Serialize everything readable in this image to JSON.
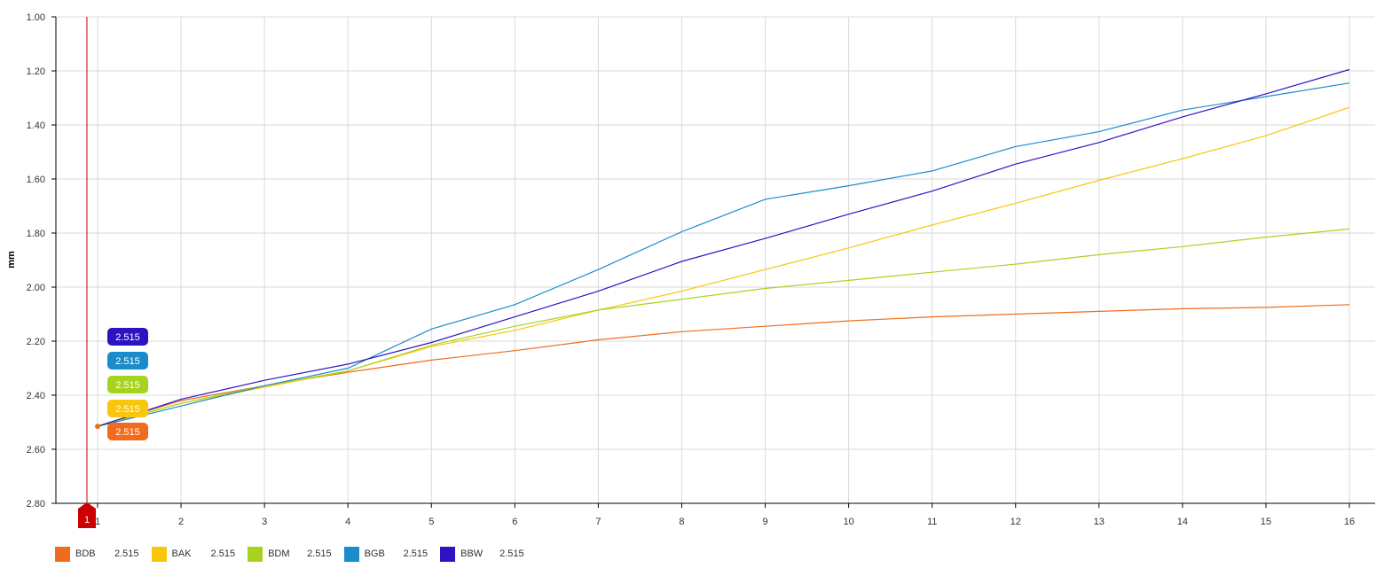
{
  "chart_data": {
    "type": "line",
    "ylabel": "mm",
    "xlabel": "",
    "ylim": [
      2.8,
      1.0
    ],
    "y_reversed": true,
    "y_ticks": [
      "1.00",
      "1.20",
      "1.40",
      "1.60",
      "1.80",
      "2.00",
      "2.20",
      "2.40",
      "2.60",
      "2.80"
    ],
    "y_tick_values": [
      1.0,
      1.2,
      1.4,
      1.6,
      1.8,
      2.0,
      2.2,
      2.4,
      2.6,
      2.8
    ],
    "x": [
      1,
      2,
      3,
      4,
      5,
      6,
      7,
      8,
      9,
      10,
      11,
      12,
      13,
      14,
      15,
      16
    ],
    "x_tick_labels": [
      "1",
      "2",
      "3",
      "4",
      "5",
      "6",
      "7",
      "8",
      "9",
      "10",
      "11",
      "12",
      "13",
      "14",
      "15",
      "16"
    ],
    "grid": true,
    "legend_position": "bottom-left",
    "series": [
      {
        "name": "BDB",
        "color": "#f26b1d",
        "value_label": "2.515",
        "values": [
          2.515,
          2.42,
          2.365,
          2.315,
          2.27,
          2.235,
          2.195,
          2.165,
          2.145,
          2.125,
          2.11,
          2.1,
          2.09,
          2.08,
          2.075,
          2.065
        ]
      },
      {
        "name": "BAK",
        "color": "#f8c60a",
        "value_label": "2.515",
        "values": [
          2.515,
          2.43,
          2.37,
          2.31,
          2.22,
          2.16,
          2.085,
          2.015,
          1.935,
          1.855,
          1.77,
          1.69,
          1.605,
          1.525,
          1.44,
          1.335
        ]
      },
      {
        "name": "BDM",
        "color": "#a6d41e",
        "value_label": "2.515",
        "values": [
          2.515,
          2.43,
          2.365,
          2.31,
          2.215,
          2.145,
          2.085,
          2.045,
          2.005,
          1.975,
          1.945,
          1.915,
          1.88,
          1.85,
          1.815,
          1.785
        ]
      },
      {
        "name": "BGB",
        "color": "#1a8ccb",
        "value_label": "2.515",
        "values": [
          2.515,
          2.44,
          2.365,
          2.3,
          2.155,
          2.065,
          1.935,
          1.795,
          1.675,
          1.625,
          1.57,
          1.48,
          1.425,
          1.345,
          1.295,
          1.245
        ]
      },
      {
        "name": "BBW",
        "color": "#2c14c2",
        "value_label": "2.515",
        "values": [
          2.515,
          2.415,
          2.345,
          2.285,
          2.205,
          2.11,
          2.015,
          1.905,
          1.82,
          1.73,
          1.645,
          1.545,
          1.465,
          1.37,
          1.285,
          1.195
        ]
      }
    ],
    "cursor": {
      "x": 1,
      "marker_label": "1",
      "color": "#cc0000"
    }
  }
}
